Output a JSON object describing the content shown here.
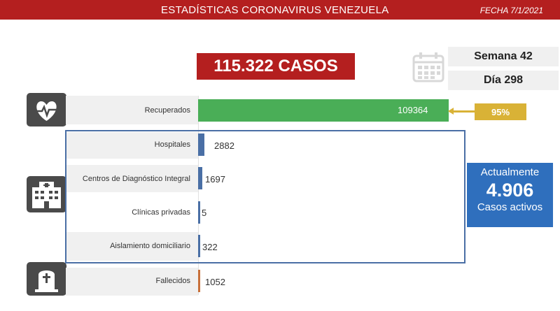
{
  "header": {
    "title": "ESTADÍSTICAS CORONAVIRUS VENEZUELA",
    "date": "FECHA 7/1/2021"
  },
  "summary": {
    "total_cases": "115.322 CASOS",
    "week": "Semana 42",
    "day": "Día 298"
  },
  "recovered_percent": "95%",
  "active": {
    "title": "Actualmente",
    "value": "4.906",
    "subtitle": "Casos activos"
  },
  "colors": {
    "header": "#b41f1f",
    "recovered": "#4aae57",
    "hospital": "#4a6fa5",
    "deaths": "#c8703a",
    "accent": "#d9b236",
    "active_box": "#2f6fbd"
  },
  "icons": [
    "heart-monitor-icon",
    "calendar-icon",
    "hospital-building-icon",
    "tombstone-icon"
  ],
  "chart_data": {
    "type": "bar",
    "orientation": "horizontal",
    "categories": [
      "Recuperados",
      "Hospitales",
      "Centros de Diagnóstico Integral",
      "Clínicas privadas",
      "Aislamiento domiciliario",
      "Fallecidos"
    ],
    "values": [
      109364,
      2882,
      1697,
      5,
      322,
      1052
    ],
    "value_labels": [
      "109364",
      "2882",
      "1697",
      "5",
      "322",
      "1052"
    ]
  }
}
